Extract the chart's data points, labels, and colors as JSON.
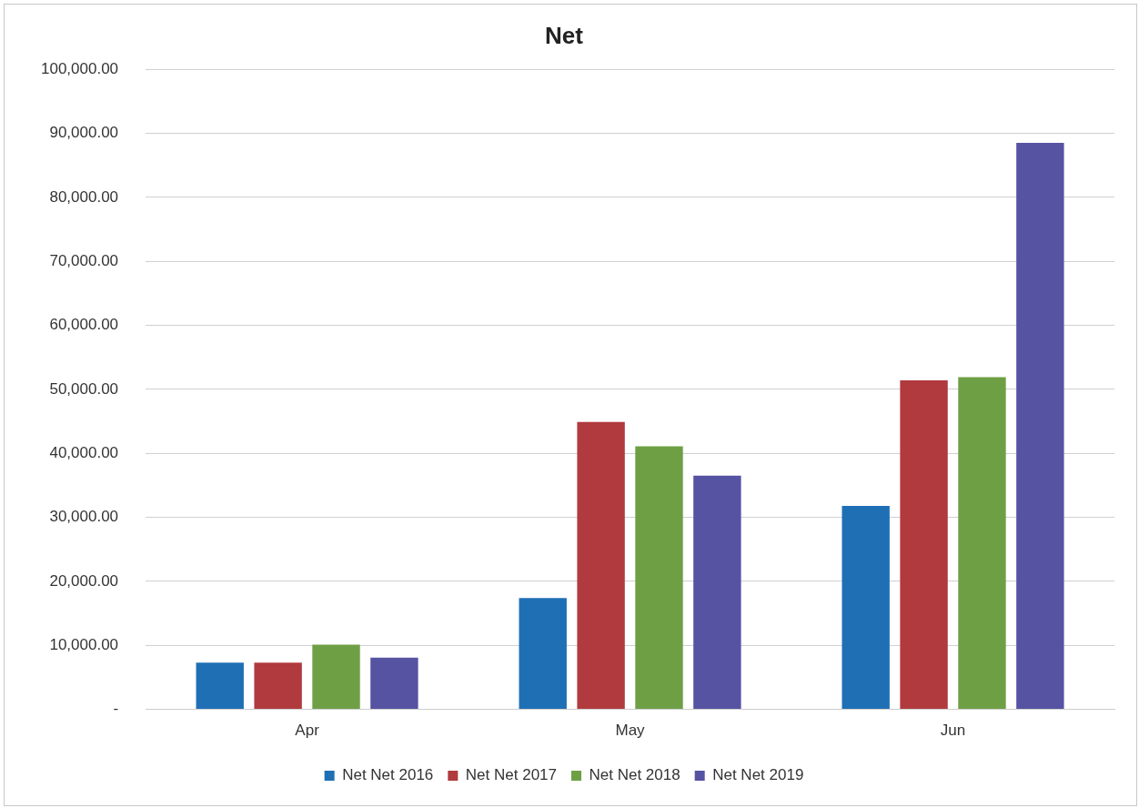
{
  "chart_data": {
    "type": "bar",
    "title": "Net",
    "categories": [
      "Apr",
      "May",
      "Jun"
    ],
    "series": [
      {
        "name": "Net Net 2016",
        "color": "#1f6fb5",
        "values": [
          7300,
          17400,
          31800
        ]
      },
      {
        "name": "Net Net 2017",
        "color": "#b03a3e",
        "values": [
          7300,
          44900,
          51400
        ]
      },
      {
        "name": "Net Net 2018",
        "color": "#6e9f45",
        "values": [
          10100,
          41100,
          51900
        ]
      },
      {
        "name": "Net Net 2019",
        "color": "#5653a3",
        "values": [
          8100,
          36500,
          88500
        ]
      }
    ],
    "ylim": [
      0,
      100000
    ],
    "yticks": [
      {
        "value": 0,
        "label": "-"
      },
      {
        "value": 10000,
        "label": "10,000.00"
      },
      {
        "value": 20000,
        "label": "20,000.00"
      },
      {
        "value": 30000,
        "label": "30,000.00"
      },
      {
        "value": 40000,
        "label": "40,000.00"
      },
      {
        "value": 50000,
        "label": "50,000.00"
      },
      {
        "value": 60000,
        "label": "60,000.00"
      },
      {
        "value": 70000,
        "label": "70,000.00"
      },
      {
        "value": 80000,
        "label": "80,000.00"
      },
      {
        "value": 90000,
        "label": "90,000.00"
      },
      {
        "value": 100000,
        "label": "100,000.00"
      }
    ],
    "grid": "y",
    "legend": "bottom"
  }
}
